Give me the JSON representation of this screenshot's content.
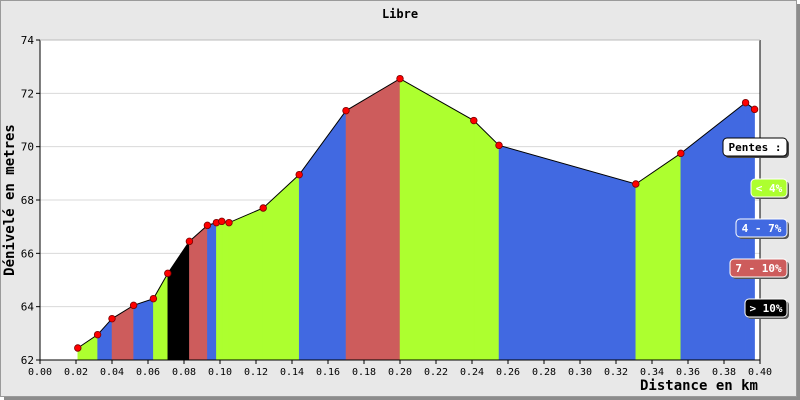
{
  "chart_data": {
    "type": "area",
    "title": "Libre",
    "xlabel": "Distance en km",
    "ylabel": "Dénivelé en metres",
    "xlim": [
      0,
      0.4
    ],
    "ylim": [
      62,
      74
    ],
    "x_ticks": [
      "0.00",
      "0.02",
      "0.04",
      "0.06",
      "0.08",
      "0.10",
      "0.12",
      "0.14",
      "0.16",
      "0.18",
      "0.20",
      "0.22",
      "0.24",
      "0.26",
      "0.28",
      "0.30",
      "0.32",
      "0.34",
      "0.36",
      "0.38",
      "0.40"
    ],
    "y_ticks": [
      "62",
      "64",
      "66",
      "68",
      "70",
      "72",
      "74"
    ],
    "grid": true,
    "legend_title": "Pentes :",
    "legend_position": "right",
    "legend": [
      {
        "label": "< 4%",
        "color": "#adff2f"
      },
      {
        "label": "4 - 7%",
        "color": "#4169e1"
      },
      {
        "label": "7 - 10%",
        "color": "#cd5c5c"
      },
      {
        "label": "> 10%",
        "color": "#000000"
      }
    ],
    "points": [
      {
        "x": 0.021,
        "y": 62.45
      },
      {
        "x": 0.032,
        "y": 62.95
      },
      {
        "x": 0.04,
        "y": 63.55
      },
      {
        "x": 0.052,
        "y": 64.05
      },
      {
        "x": 0.063,
        "y": 64.3
      },
      {
        "x": 0.071,
        "y": 65.25
      },
      {
        "x": 0.083,
        "y": 66.45
      },
      {
        "x": 0.093,
        "y": 67.05
      },
      {
        "x": 0.098,
        "y": 67.15
      },
      {
        "x": 0.101,
        "y": 67.2
      },
      {
        "x": 0.105,
        "y": 67.15
      },
      {
        "x": 0.124,
        "y": 67.7
      },
      {
        "x": 0.144,
        "y": 68.95
      },
      {
        "x": 0.17,
        "y": 71.35
      },
      {
        "x": 0.2,
        "y": 72.55
      },
      {
        "x": 0.241,
        "y": 70.98
      },
      {
        "x": 0.255,
        "y": 70.05
      },
      {
        "x": 0.331,
        "y": 68.6
      },
      {
        "x": 0.356,
        "y": 69.75
      },
      {
        "x": 0.392,
        "y": 71.65
      },
      {
        "x": 0.397,
        "y": 71.4
      }
    ],
    "segment_classes": [
      "< 4%",
      "4 - 7%",
      "7 - 10%",
      "4 - 7%",
      "< 4%",
      "> 10%",
      "7 - 10%",
      "4 - 7%",
      "< 4%",
      "< 4%",
      "< 4%",
      "< 4%",
      "4 - 7%",
      "7 - 10%",
      "< 4%",
      "< 4%",
      "4 - 7%",
      "< 4%",
      "4 - 7%",
      "4 - 7%"
    ],
    "colors": {
      "background": "#e8e8e8",
      "plot": "#ffffff",
      "line": "#000000",
      "marker": "#ff0000"
    }
  }
}
